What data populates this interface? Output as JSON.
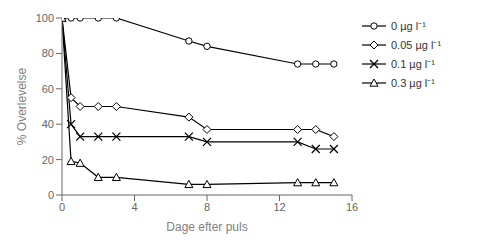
{
  "chart_data": {
    "type": "line",
    "xlabel": "Dage efter puls",
    "ylabel": "% Overlevelse",
    "x": [
      0,
      0.5,
      1,
      2,
      3,
      7,
      8,
      13,
      14,
      15
    ],
    "series": [
      {
        "name": "0 µg l⁻¹",
        "color": "#000000",
        "marker": "circle",
        "values": [
          100,
          100,
          100,
          100,
          100,
          87,
          84,
          74,
          74,
          74
        ]
      },
      {
        "name": "0.05 µg l⁻¹",
        "color": "#000000",
        "marker": "diamond",
        "values": [
          100,
          55,
          50,
          50,
          50,
          44,
          37,
          37,
          37,
          33
        ]
      },
      {
        "name": "0.1 µg l⁻¹",
        "color": "#000000",
        "marker": "cross",
        "values": [
          100,
          40,
          33,
          33,
          33,
          33,
          30,
          30,
          26,
          26
        ]
      },
      {
        "name": "0.3 µg l⁻¹",
        "color": "#000000",
        "marker": "triangle",
        "values": [
          100,
          19,
          18,
          10,
          10,
          6,
          6,
          7,
          7,
          7
        ]
      }
    ],
    "xlim": [
      0,
      16
    ],
    "ylim": [
      0,
      100
    ],
    "xticks": [
      0,
      4,
      8,
      12,
      16
    ],
    "yticks": [
      0,
      20,
      40,
      60,
      80,
      100
    ],
    "grid": false,
    "legend": "right"
  }
}
